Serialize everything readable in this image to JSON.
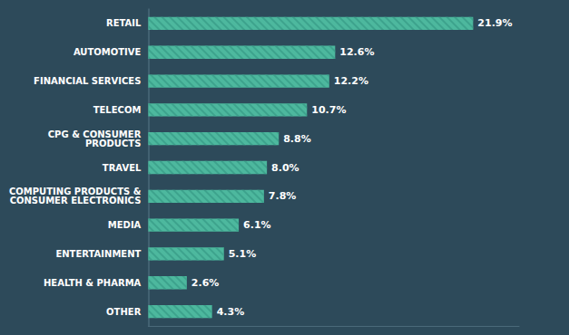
{
  "chart_data": {
    "type": "bar",
    "orientation": "horizontal",
    "categories": [
      "RETAIL",
      "AUTOMOTIVE",
      "FINANCIAL SERVICES",
      "TELECOM",
      "CPG & CONSUMER\nPRODUCTS",
      "TRAVEL",
      "COMPUTING PRODUCTS &\nCONSUMER ELECTRONICS",
      "MEDIA",
      "ENTERTAINMENT",
      "HEALTH & PHARMA",
      "OTHER"
    ],
    "values": [
      21.9,
      12.6,
      12.2,
      10.7,
      8.8,
      8.0,
      7.8,
      6.1,
      5.1,
      2.6,
      4.3
    ],
    "value_labels": [
      "21.9%",
      "12.6%",
      "12.2%",
      "10.7%",
      "8.8%",
      "8.0%",
      "7.8%",
      "6.1%",
      "5.1%",
      "2.6%",
      "4.3%"
    ],
    "color": "#4db89e",
    "xlim": [
      0,
      25
    ],
    "data_labels": true,
    "tick_labels": "y",
    "grid": false
  }
}
